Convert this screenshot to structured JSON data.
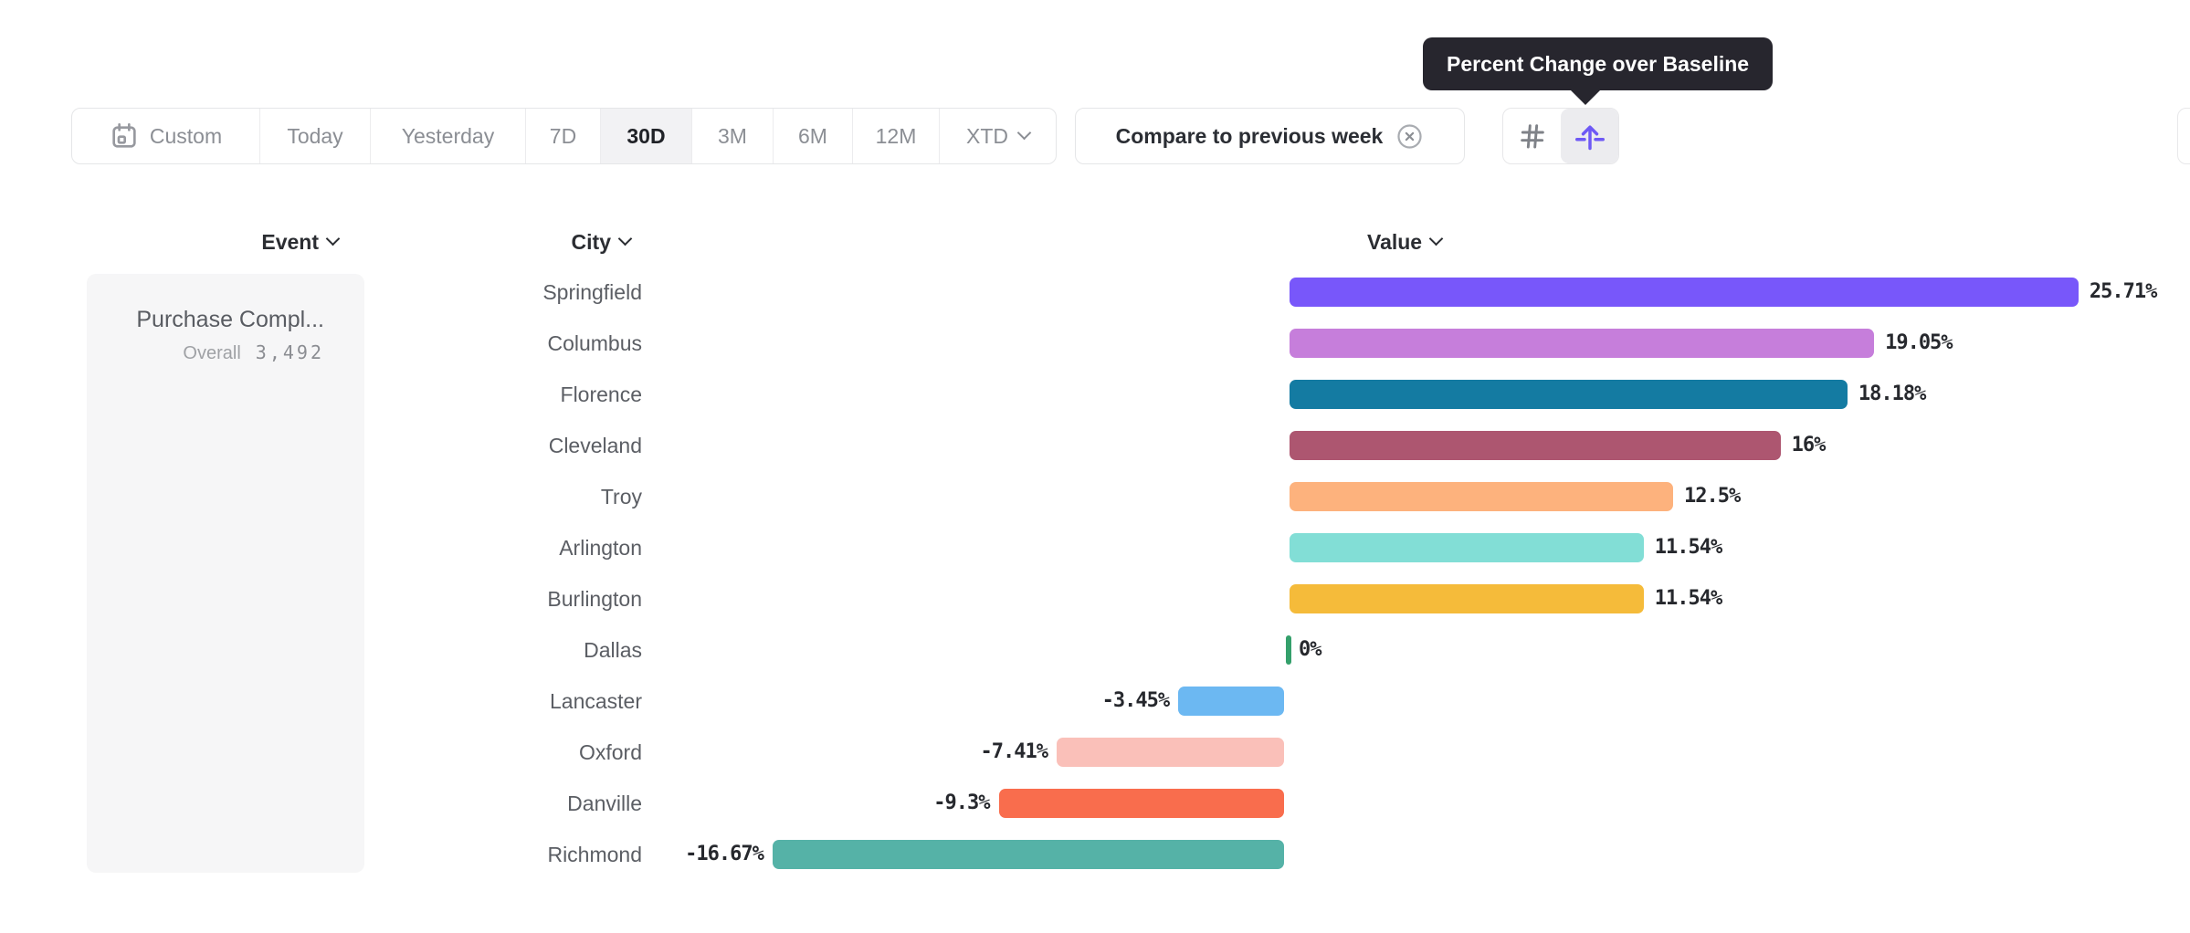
{
  "tooltip": {
    "text": "Percent Change over Baseline"
  },
  "toolbar": {
    "date_ranges": [
      {
        "label": "Custom",
        "selected": false,
        "icon": "calendar-icon"
      },
      {
        "label": "Today",
        "selected": false
      },
      {
        "label": "Yesterday",
        "selected": false
      },
      {
        "label": "7D",
        "selected": false
      },
      {
        "label": "30D",
        "selected": true
      },
      {
        "label": "3M",
        "selected": false
      },
      {
        "label": "6M",
        "selected": false
      },
      {
        "label": "12M",
        "selected": false
      },
      {
        "label": "XTD",
        "selected": false,
        "icon": "chevron-down-icon"
      }
    ],
    "compare": {
      "label": "Compare to previous week",
      "icon": "x-circle-icon"
    },
    "view_toggles": [
      {
        "name": "numbers-view",
        "icon": "hash-icon",
        "selected": false
      },
      {
        "name": "percent-change-view",
        "icon": "arrow-up-baseline-icon",
        "selected": true
      }
    ]
  },
  "columns": {
    "event": "Event",
    "city": "City",
    "value": "Value"
  },
  "event_panel": {
    "title": "Purchase Compl...",
    "overall_label": "Overall",
    "overall_value": "3,492"
  },
  "chart_data": {
    "type": "bar",
    "orientation": "horizontal",
    "title": "Percent Change over Baseline",
    "unit": "%",
    "baseline": 0,
    "grid": false,
    "legend": "none",
    "categories": [
      "Springfield",
      "Columbus",
      "Florence",
      "Cleveland",
      "Troy",
      "Arlington",
      "Burlington",
      "Dallas",
      "Lancaster",
      "Oxford",
      "Danville",
      "Richmond"
    ],
    "values": [
      25.71,
      19.05,
      18.18,
      16,
      12.5,
      11.54,
      11.54,
      0,
      -3.45,
      -7.41,
      -9.3,
      -16.67
    ],
    "labels": [
      "25.71%",
      "19.05%",
      "18.18%",
      "16%",
      "12.5%",
      "11.54%",
      "11.54%",
      "0%",
      "-3.45%",
      "-7.41%",
      "-9.3%",
      "-16.67%"
    ],
    "colors": [
      "#7857fa",
      "#c67edb",
      "#147ba2",
      "#ad5670",
      "#fdb27d",
      "#82ded6",
      "#f5bb3a",
      "#34a06b",
      "#6cb8f2",
      "#fac0b9",
      "#f96d4d",
      "#55b2a7"
    ]
  },
  "ui_colors": {
    "tooltip_bg": "#27262e",
    "selected_range_bg": "#f2f2f4",
    "accent_purple": "#6e59f5",
    "panel_bg": "#f6f6f7",
    "border": "#e5e6e8",
    "muted_text": "#8b8e94",
    "dark_text": "#26282d"
  }
}
